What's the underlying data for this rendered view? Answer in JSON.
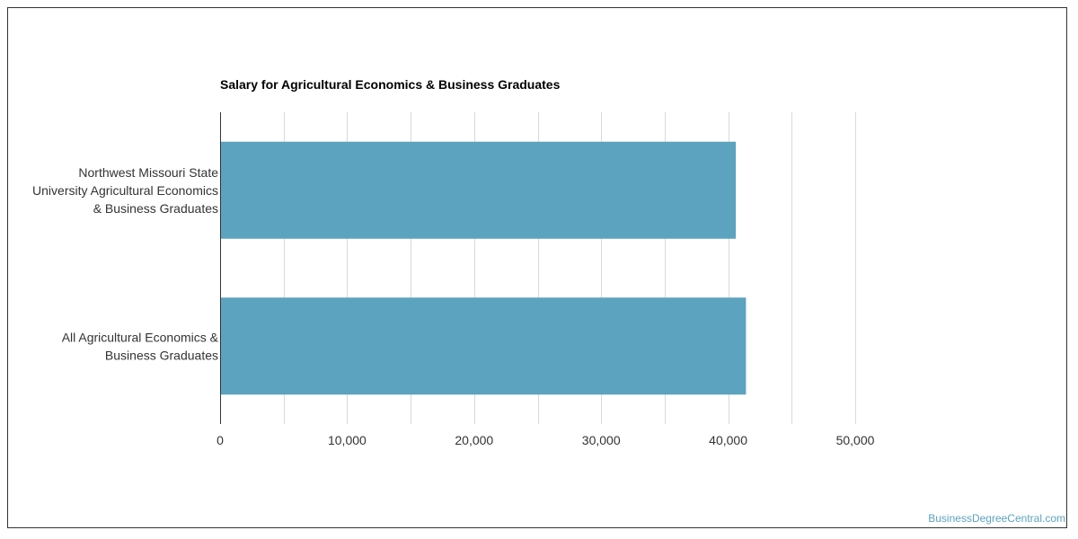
{
  "chart_data": {
    "type": "bar",
    "orientation": "horizontal",
    "title": "Salary for Agricultural Economics & Business Graduates",
    "categories": [
      "Northwest Missouri State University Agricultural Economics & Business Graduates",
      "All Agricultural Economics & Business Graduates"
    ],
    "category_label_lines": [
      [
        "Northwest Missouri State",
        "University Agricultural Economics",
        "& Business Graduates"
      ],
      [
        "All Agricultural Economics &",
        "Business Graduates"
      ]
    ],
    "values": [
      40600,
      41400
    ],
    "xlim": [
      0,
      50000
    ],
    "xticks": [
      0,
      10000,
      20000,
      30000,
      40000,
      50000
    ],
    "xtick_labels": [
      "0",
      "10,000",
      "20,000",
      "30,000",
      "40,000",
      "50,000"
    ],
    "xlabel": "",
    "ylabel": "",
    "grid": true,
    "bar_color": "#5ca3bf",
    "grid_color": "#d9d9d9"
  },
  "watermark": "BusinessDegreeCentral.com"
}
